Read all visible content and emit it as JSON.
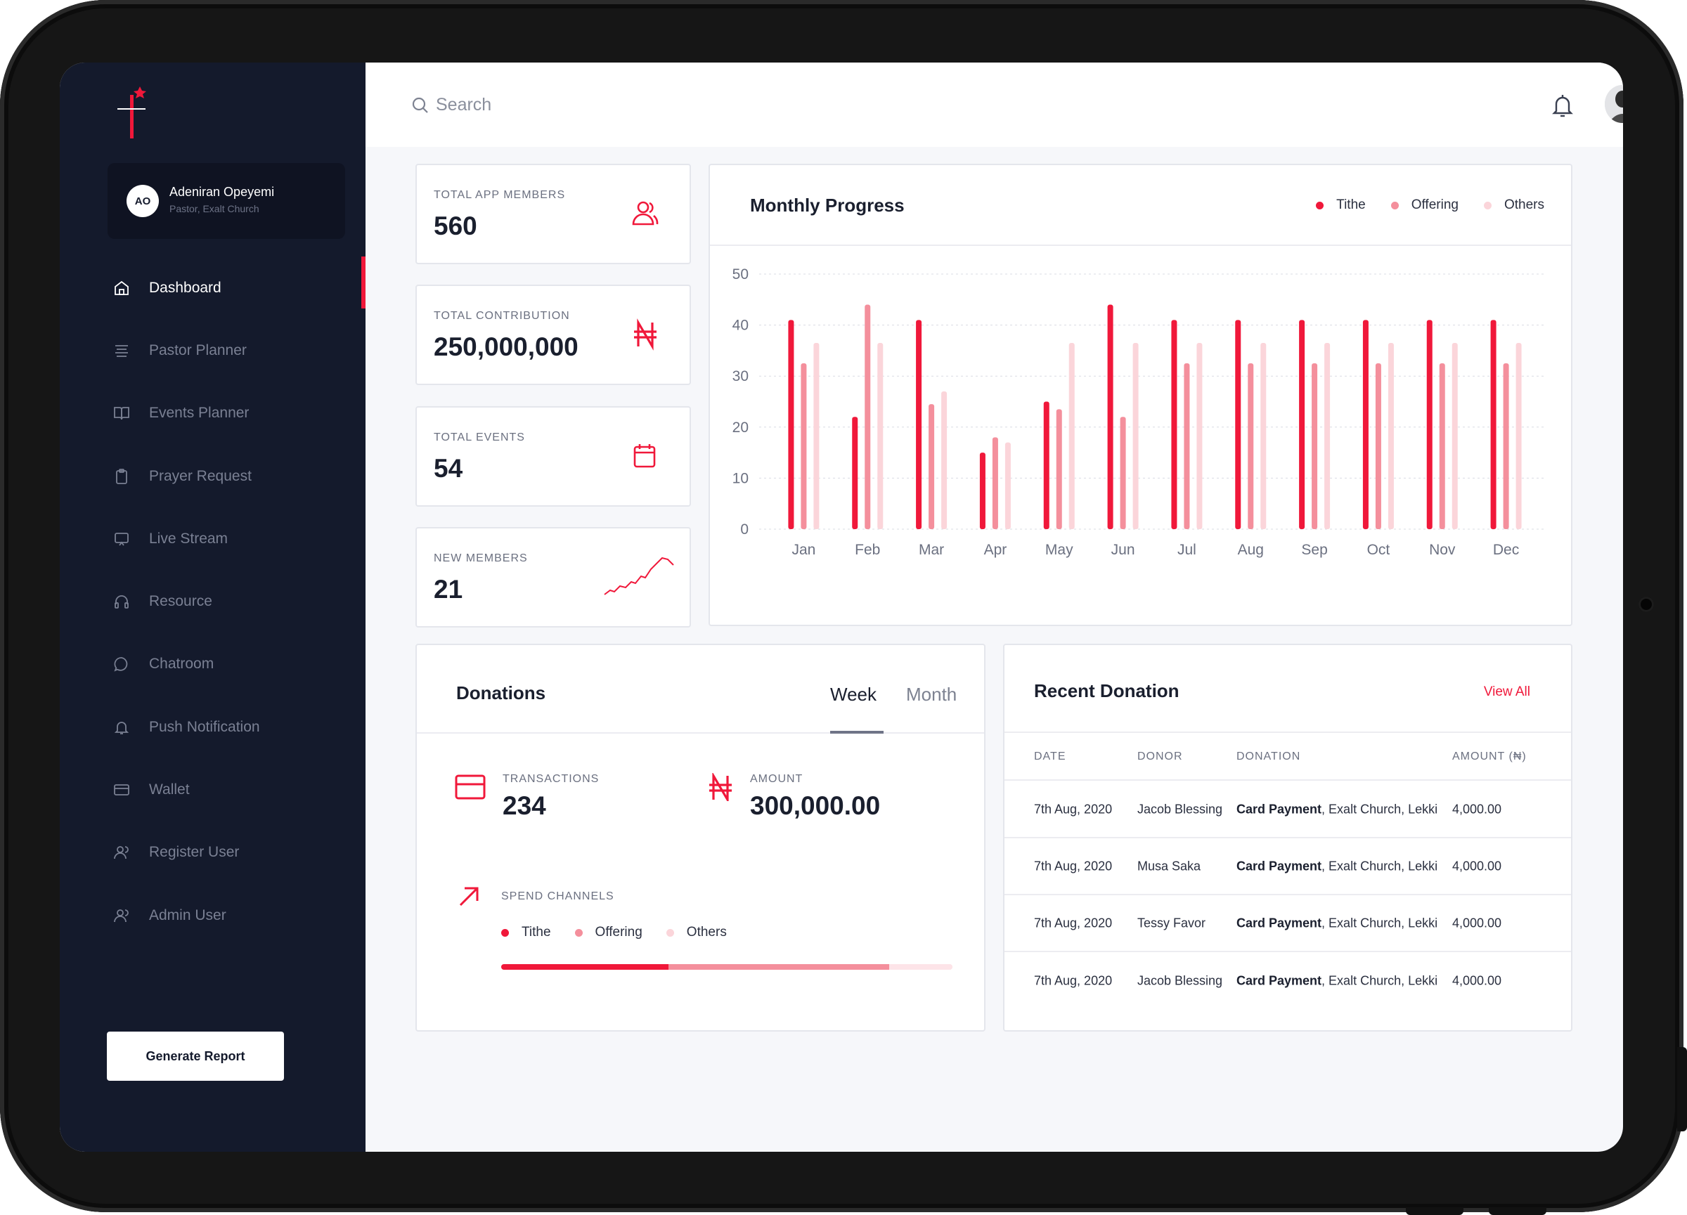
{
  "user": {
    "initials": "AO",
    "name": "Adeniran Opeyemi",
    "role": "Pastor, Exalt Church"
  },
  "nav": [
    {
      "label": "Dashboard",
      "icon": "home-icon",
      "active": true
    },
    {
      "label": "Pastor Planner",
      "icon": "list-icon"
    },
    {
      "label": "Events Planner",
      "icon": "book-icon"
    },
    {
      "label": "Prayer Request",
      "icon": "clipboard-icon"
    },
    {
      "label": "Live Stream",
      "icon": "monitor-icon"
    },
    {
      "label": "Resource",
      "icon": "headphones-icon"
    },
    {
      "label": "Chatroom",
      "icon": "chat-icon"
    },
    {
      "label": "Push Notification",
      "icon": "bell-icon"
    },
    {
      "label": "Wallet",
      "icon": "wallet-icon"
    },
    {
      "label": "Register User",
      "icon": "user-icon"
    },
    {
      "label": "Admin User",
      "icon": "user-icon"
    }
  ],
  "generate_report": "Generate Report",
  "search": {
    "placeholder": "Search"
  },
  "stats": [
    {
      "label": "TOTAL APP MEMBERS",
      "value": "560",
      "icon": "users-icon"
    },
    {
      "label": "TOTAL CONTRIBUTION",
      "value": "250,000,000",
      "icon": "naira-icon"
    },
    {
      "label": "TOTAL EVENTS",
      "value": "54",
      "icon": "calendar-icon"
    },
    {
      "label": "NEW MEMBERS",
      "value": "21",
      "icon": "trend-line-icon"
    }
  ],
  "monthly": {
    "title": "Monthly Progress"
  },
  "chart_data": {
    "type": "bar",
    "categories": [
      "Jan",
      "Feb",
      "Mar",
      "Apr",
      "May",
      "Jun",
      "Jul",
      "Aug",
      "Sep",
      "Oct",
      "Nov",
      "Dec"
    ],
    "series": [
      {
        "name": "Tithe",
        "color": "#f0183a",
        "values": [
          41,
          22,
          41,
          15,
          25,
          44,
          41,
          41,
          41,
          41,
          41,
          41
        ]
      },
      {
        "name": "Offering",
        "color": "#f48f9c",
        "values": [
          32.5,
          44,
          24.5,
          18,
          23.5,
          22,
          32.5,
          32.5,
          32.5,
          32.5,
          32.5,
          32.5
        ]
      },
      {
        "name": "Others",
        "color": "#fbd5da",
        "values": [
          36.5,
          36.5,
          27,
          17,
          36.5,
          36.5,
          36.5,
          36.5,
          36.5,
          36.5,
          36.5,
          36.5
        ]
      }
    ],
    "yticks": [
      "0",
      "10",
      "20",
      "30",
      "40",
      "50"
    ],
    "ylim": [
      0,
      50
    ],
    "grid": true,
    "legend": "top-right"
  },
  "donations": {
    "title": "Donations",
    "tabs": [
      "Week",
      "Month"
    ],
    "transactions_label": "TRANSACTIONS",
    "transactions_value": "234",
    "amount_label": "AMOUNT",
    "amount_value": "300,000.00",
    "spend_label": "SPEND CHANNELS",
    "legend": [
      "Tithe",
      "Offering",
      "Others"
    ],
    "spend_split": [
      0.37,
      0.49,
      0.14
    ]
  },
  "recent": {
    "title": "Recent Donation",
    "view_all": "View All",
    "headers": [
      "DATE",
      "DONOR",
      "DONATION",
      "AMOUNT (₦)"
    ],
    "rows": [
      {
        "date": "7th Aug, 2020",
        "donor": "Jacob Blessing",
        "method": "Card Payment",
        "place": ", Exalt Church, Lekki",
        "amount": "4,000.00"
      },
      {
        "date": "7th Aug, 2020",
        "donor": "Musa Saka",
        "method": "Card Payment",
        "place": ", Exalt Church, Lekki",
        "amount": "4,000.00"
      },
      {
        "date": "7th Aug, 2020",
        "donor": "Tessy Favor",
        "method": "Card Payment",
        "place": ", Exalt Church, Lekki",
        "amount": "4,000.00"
      },
      {
        "date": "7th Aug, 2020",
        "donor": "Jacob Blessing",
        "method": "Card Payment",
        "place": ", Exalt Church, Lekki",
        "amount": "4,000.00"
      }
    ]
  }
}
